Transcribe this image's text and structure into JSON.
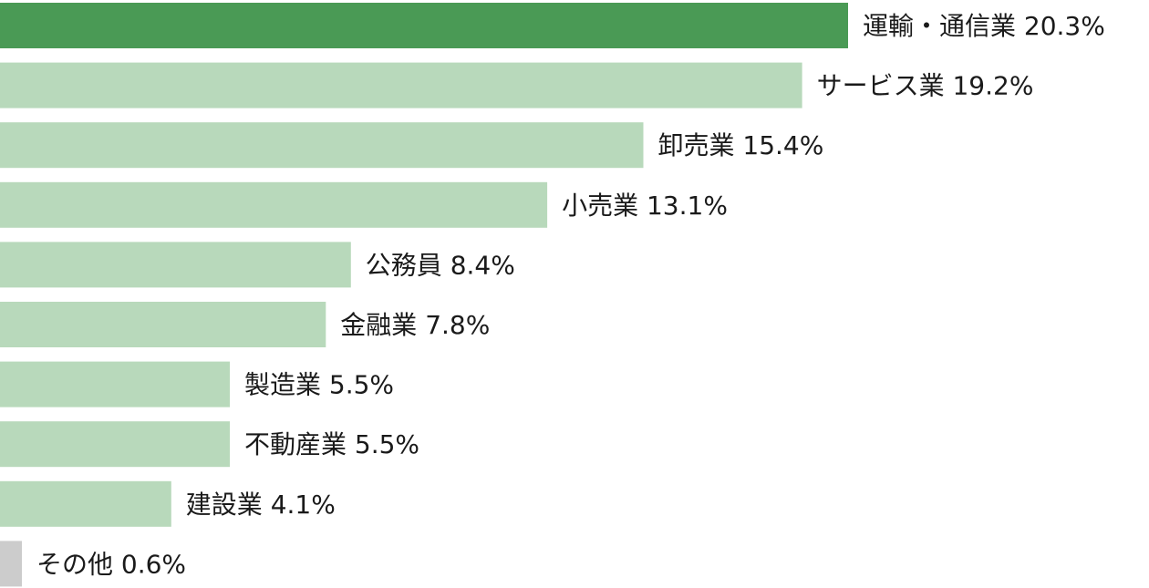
{
  "chart_data": {
    "type": "bar",
    "orientation": "horizontal",
    "categories": [
      "運輸・通信業",
      "サービス業",
      "卸売業",
      "小売業",
      "公務員",
      "金融業",
      "製造業",
      "不動産業",
      "建設業",
      "その他"
    ],
    "values": [
      20.3,
      19.2,
      15.4,
      13.1,
      8.4,
      7.8,
      5.5,
      5.5,
      4.1,
      0.6
    ],
    "unit": "%",
    "labels": [
      "運輸・通信業 20.3%",
      "サービス業 19.2%",
      "卸売業 15.4%",
      "小売業 13.1%",
      "公務員 8.4%",
      "金融業 7.8%",
      "製造業 5.5%",
      "不動産業 5.5%",
      "建設業 4.1%",
      "その他 0.6%"
    ],
    "bar_colors": [
      "#4a9a55",
      "#b8d9bb",
      "#b8d9bb",
      "#b8d9bb",
      "#b8d9bb",
      "#b8d9bb",
      "#b8d9bb",
      "#b8d9bb",
      "#b8d9bb",
      "#cccccc"
    ],
    "title": "",
    "xlabel": "",
    "ylabel": "",
    "xlim": [
      0,
      20.3
    ],
    "grid": false,
    "legend": "none"
  }
}
